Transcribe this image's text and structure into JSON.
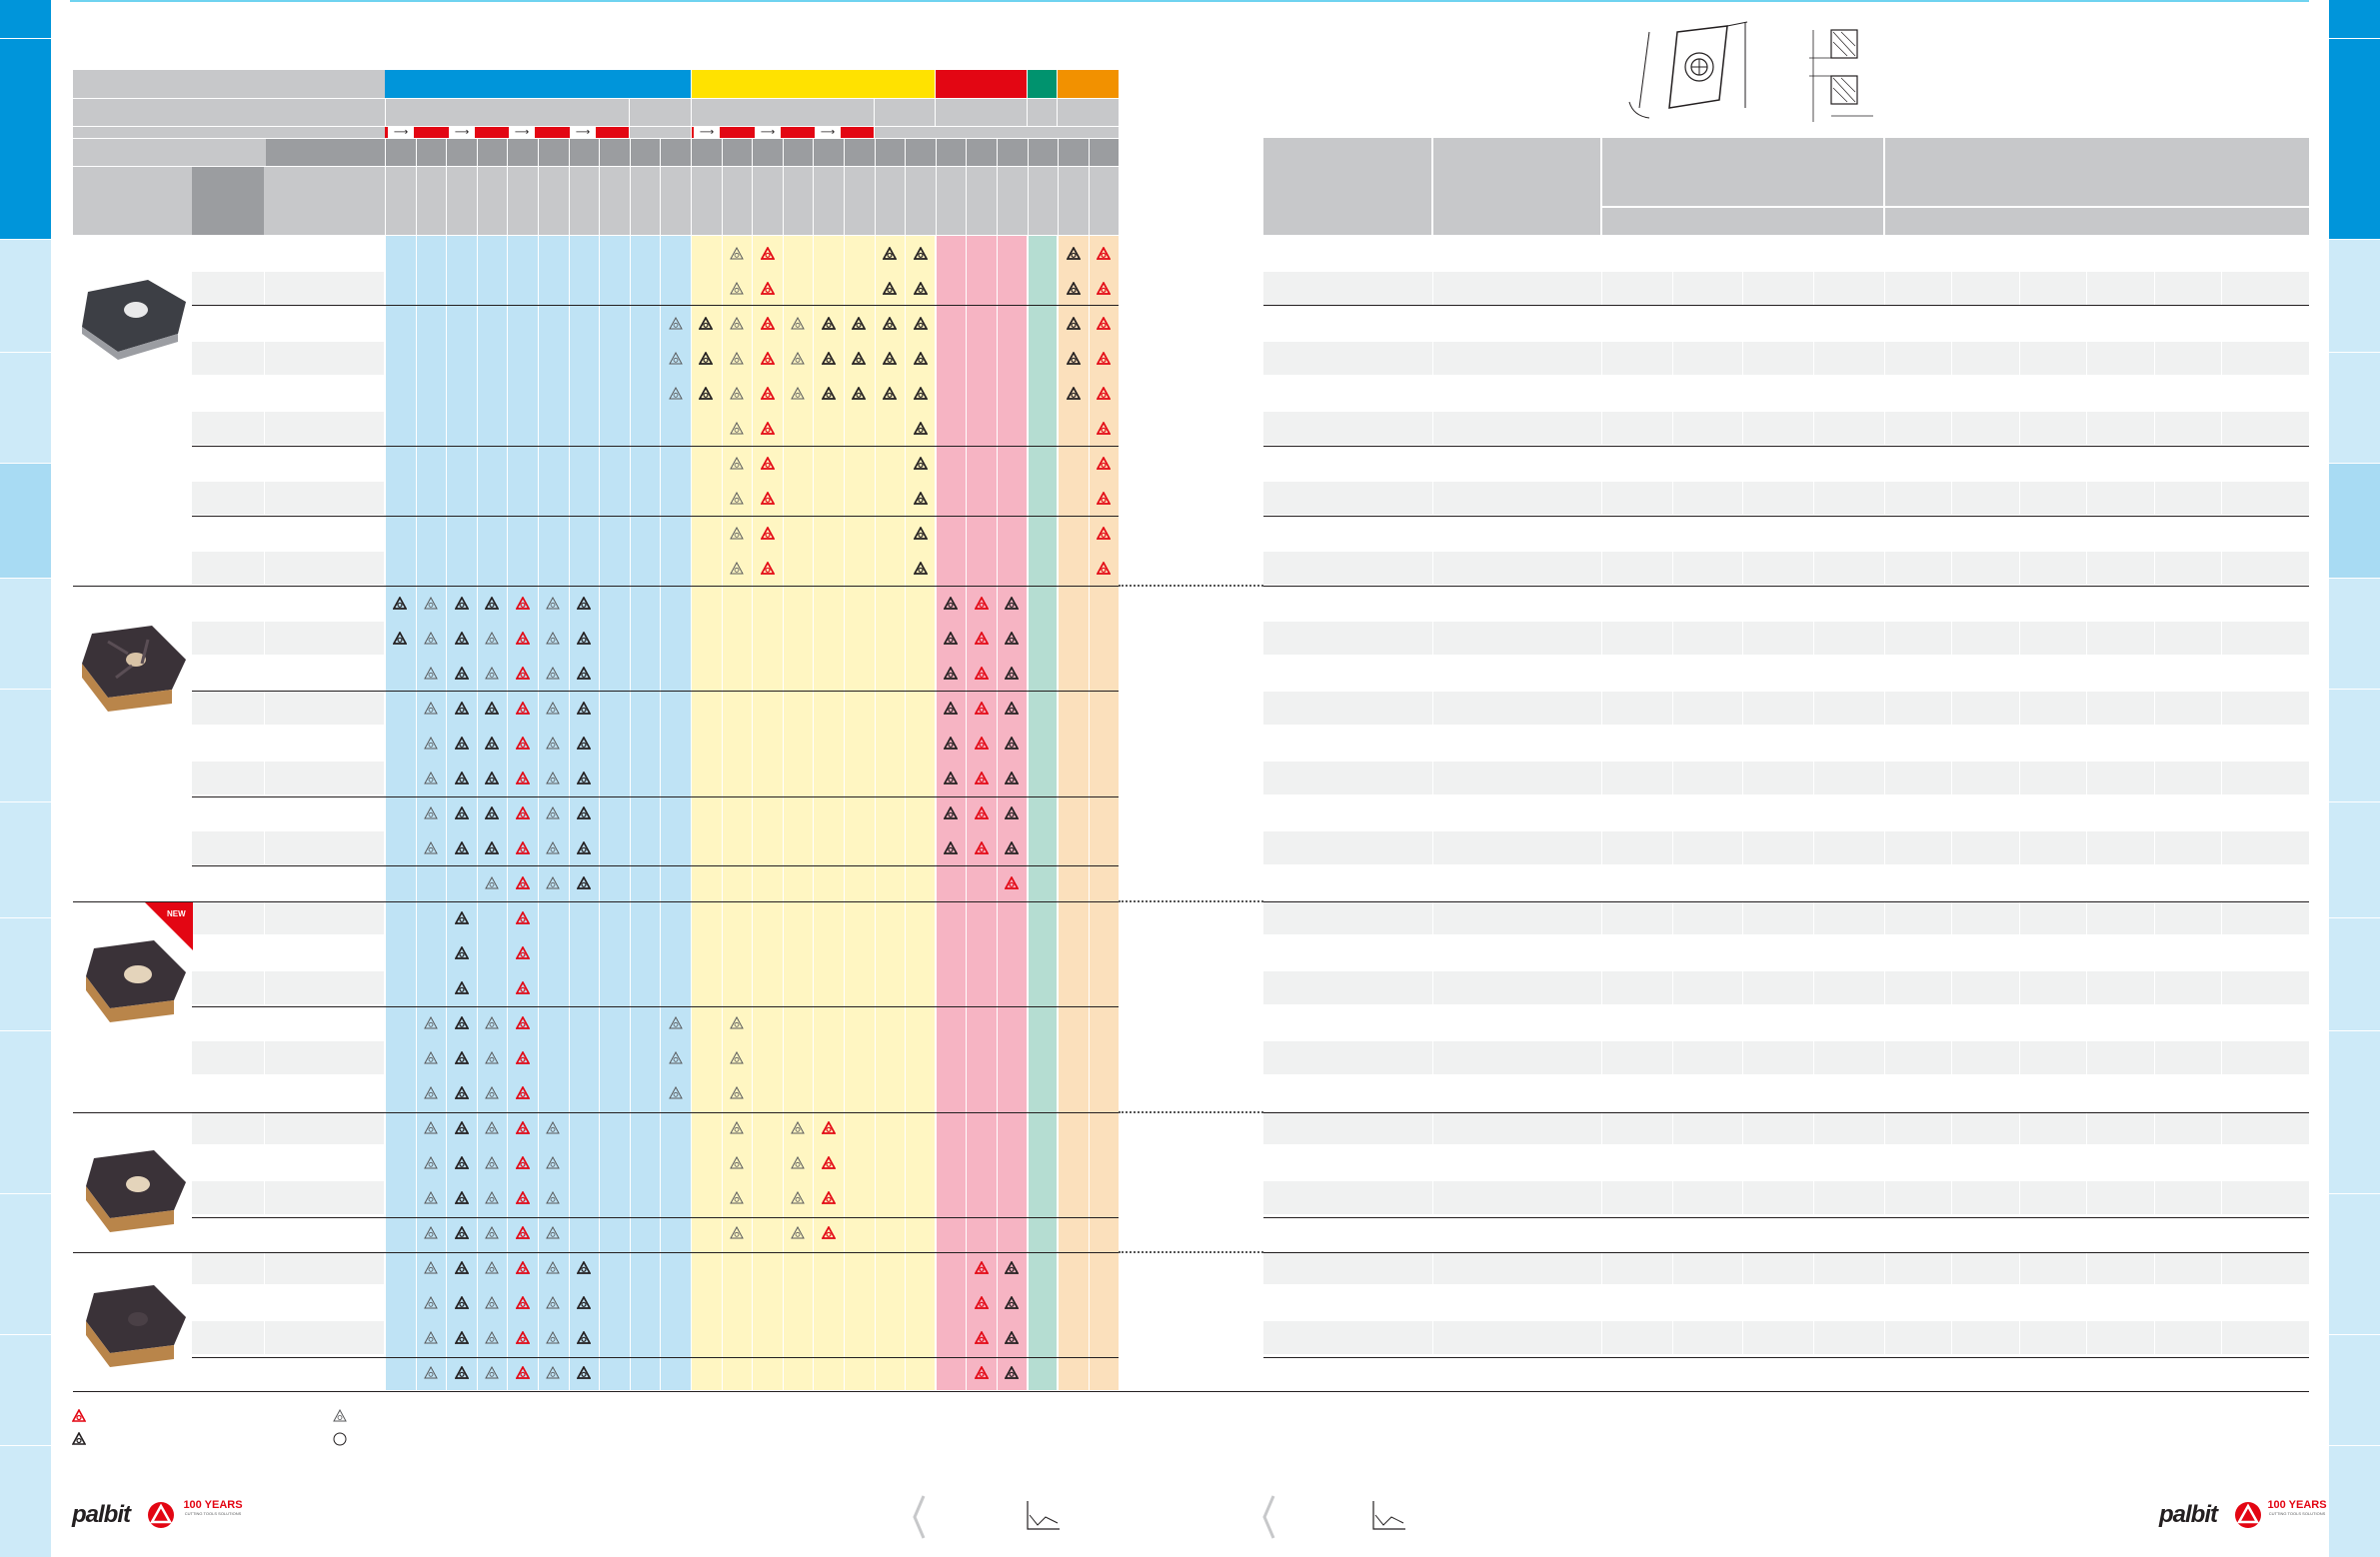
{
  "badge": {
    "new_label": "NEW"
  },
  "footer": {
    "logo_text": "palbit",
    "anniversary_text": "100 YEARS",
    "anniversary_sub": "CUTTING TOOLS SOLUTIONS"
  },
  "colors": {
    "p_blue": "#0095da",
    "m_yellow": "#ffe200",
    "k_red": "#e30613",
    "n_green": "#00936e",
    "s_orange": "#f29100",
    "p_light": "#bfe3f5",
    "m_light": "#fff6c2",
    "k_light": "#f6b4c3",
    "n_light": "#b5ddd2",
    "s_light": "#fbe0bc",
    "header_grey": "#c7c8ca",
    "header_dark": "#9b9da0",
    "side_tab_active": "#0095da",
    "side_tab_light": "#cdeaf8",
    "accent_line": "#6fd3f0"
  },
  "icons": {
    "red_grade_mark": "triangle-logo-red-icon",
    "dark_grade_mark": "triangle-logo-dark-icon",
    "light_grade_mark": "triangle-logo-outline-icon",
    "circle_mark": "circle-outline-icon",
    "arrow": "arrow-right-icon",
    "chevron": "chevron-left-icon",
    "graph": "cutting-graph-icon"
  }
}
